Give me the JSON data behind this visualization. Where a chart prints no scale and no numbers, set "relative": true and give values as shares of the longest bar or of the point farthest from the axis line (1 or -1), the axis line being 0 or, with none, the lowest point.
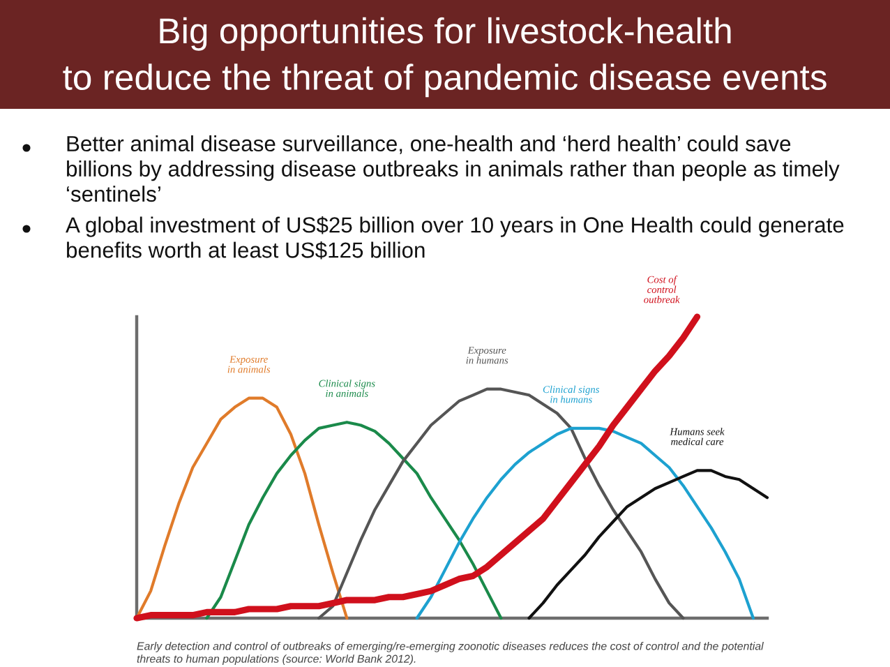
{
  "chart_data": {
    "type": "line",
    "relative": true,
    "title": "Big opportunities for livestock-health\nto reduce the threat of pandemic disease events",
    "annotations": [
      "Better animal disease surveillance, one-health and ‘herd health’ could save\nbillions by addressing disease outbreaks in animals rather than people as timely\n‘sentinels’",
      "A global investment of US$25 billion over 10 years in One Health could generate\nbenefits worth at least US$125 billion",
      "Early detection and control of outbreaks of emerging/re-emerging zoonotic diseases reduces the cost of control and the potential\nthreats to human populations (source: World Bank 2012)."
    ],
    "categories": [
      null,
      null,
      null,
      null,
      null,
      null,
      null,
      null,
      null,
      null,
      null,
      null,
      null,
      null,
      null,
      null,
      null,
      null,
      null,
      null,
      null,
      null,
      null,
      null,
      null,
      null,
      null,
      null,
      null,
      null,
      null,
      null,
      null,
      null,
      null,
      null,
      null,
      null,
      null,
      null,
      null,
      null,
      null,
      null,
      null,
      null
    ],
    "series": [
      {
        "name": "Exposure\nin animals",
        "color": "#e07b2a",
        "values": [
          0,
          0.09,
          0.24,
          0.38,
          0.5,
          0.58,
          0.66,
          0.7,
          0.73,
          0.73,
          0.7,
          0.61,
          0.48,
          0.31,
          0.15,
          0,
          null,
          null,
          null,
          null,
          null,
          null,
          null,
          null,
          null,
          null,
          null,
          null,
          null,
          null,
          null,
          null,
          null,
          null,
          null,
          null,
          null,
          null,
          null,
          null,
          null,
          null,
          null,
          null,
          null,
          null
        ]
      },
      {
        "name": "Clinical signs\nin animals",
        "color": "#1a8a4a",
        "values": [
          null,
          null,
          null,
          null,
          null,
          0,
          0.07,
          0.19,
          0.31,
          0.4,
          0.48,
          0.54,
          0.59,
          0.63,
          0.64,
          0.65,
          0.64,
          0.62,
          0.58,
          0.53,
          0.48,
          0.4,
          0.33,
          0.26,
          0.18,
          0.09,
          0,
          null,
          null,
          null,
          null,
          null,
          null,
          null,
          null,
          null,
          null,
          null,
          null,
          null,
          null,
          null,
          null,
          null,
          null,
          null
        ]
      },
      {
        "name": "Exposure\nin humans",
        "color": "#555555",
        "values": [
          null,
          null,
          null,
          null,
          null,
          null,
          null,
          null,
          null,
          null,
          null,
          null,
          null,
          0,
          0.04,
          0.15,
          0.26,
          0.36,
          0.44,
          0.52,
          0.58,
          0.64,
          0.68,
          0.72,
          0.74,
          0.76,
          0.76,
          0.75,
          0.74,
          0.71,
          0.68,
          0.63,
          0.53,
          0.44,
          0.36,
          0.29,
          0.22,
          0.13,
          0.05,
          0,
          null,
          null,
          null,
          null,
          null,
          null
        ]
      },
      {
        "name": "Clinical signs\nin humans",
        "color": "#1da1d0",
        "values": [
          null,
          null,
          null,
          null,
          null,
          null,
          null,
          null,
          null,
          null,
          null,
          null,
          null,
          null,
          null,
          null,
          null,
          null,
          null,
          null,
          0,
          0.07,
          0.16,
          0.25,
          0.33,
          0.4,
          0.46,
          0.51,
          0.55,
          0.58,
          0.61,
          0.63,
          0.63,
          0.63,
          0.62,
          0.6,
          0.58,
          0.54,
          0.5,
          0.44,
          0.37,
          0.3,
          0.22,
          0.13,
          0,
          null
        ]
      },
      {
        "name": "Humans seek\nmedical care",
        "color": "#111111",
        "values": [
          null,
          null,
          null,
          null,
          null,
          null,
          null,
          null,
          null,
          null,
          null,
          null,
          null,
          null,
          null,
          null,
          null,
          null,
          null,
          null,
          null,
          null,
          null,
          null,
          null,
          null,
          null,
          null,
          0,
          0.05,
          0.11,
          0.16,
          0.21,
          0.27,
          0.32,
          0.37,
          0.4,
          0.43,
          0.45,
          0.47,
          0.49,
          0.49,
          0.47,
          0.46,
          0.43,
          0.4
        ]
      },
      {
        "name": "Cost of\ncontrol\noutbreak",
        "color": "#d0101c",
        "values": [
          0,
          0.01,
          0.01,
          0.01,
          0.01,
          0.02,
          0.02,
          0.02,
          0.03,
          0.03,
          0.03,
          0.04,
          0.04,
          0.04,
          0.05,
          0.06,
          0.06,
          0.06,
          0.07,
          0.07,
          0.08,
          0.09,
          0.11,
          0.13,
          0.14,
          0.17,
          0.21,
          0.25,
          0.29,
          0.33,
          0.39,
          0.45,
          0.51,
          0.57,
          0.64,
          0.7,
          0.76,
          0.82,
          0.87,
          0.93,
          1,
          null,
          null,
          null,
          null,
          null
        ]
      }
    ]
  }
}
